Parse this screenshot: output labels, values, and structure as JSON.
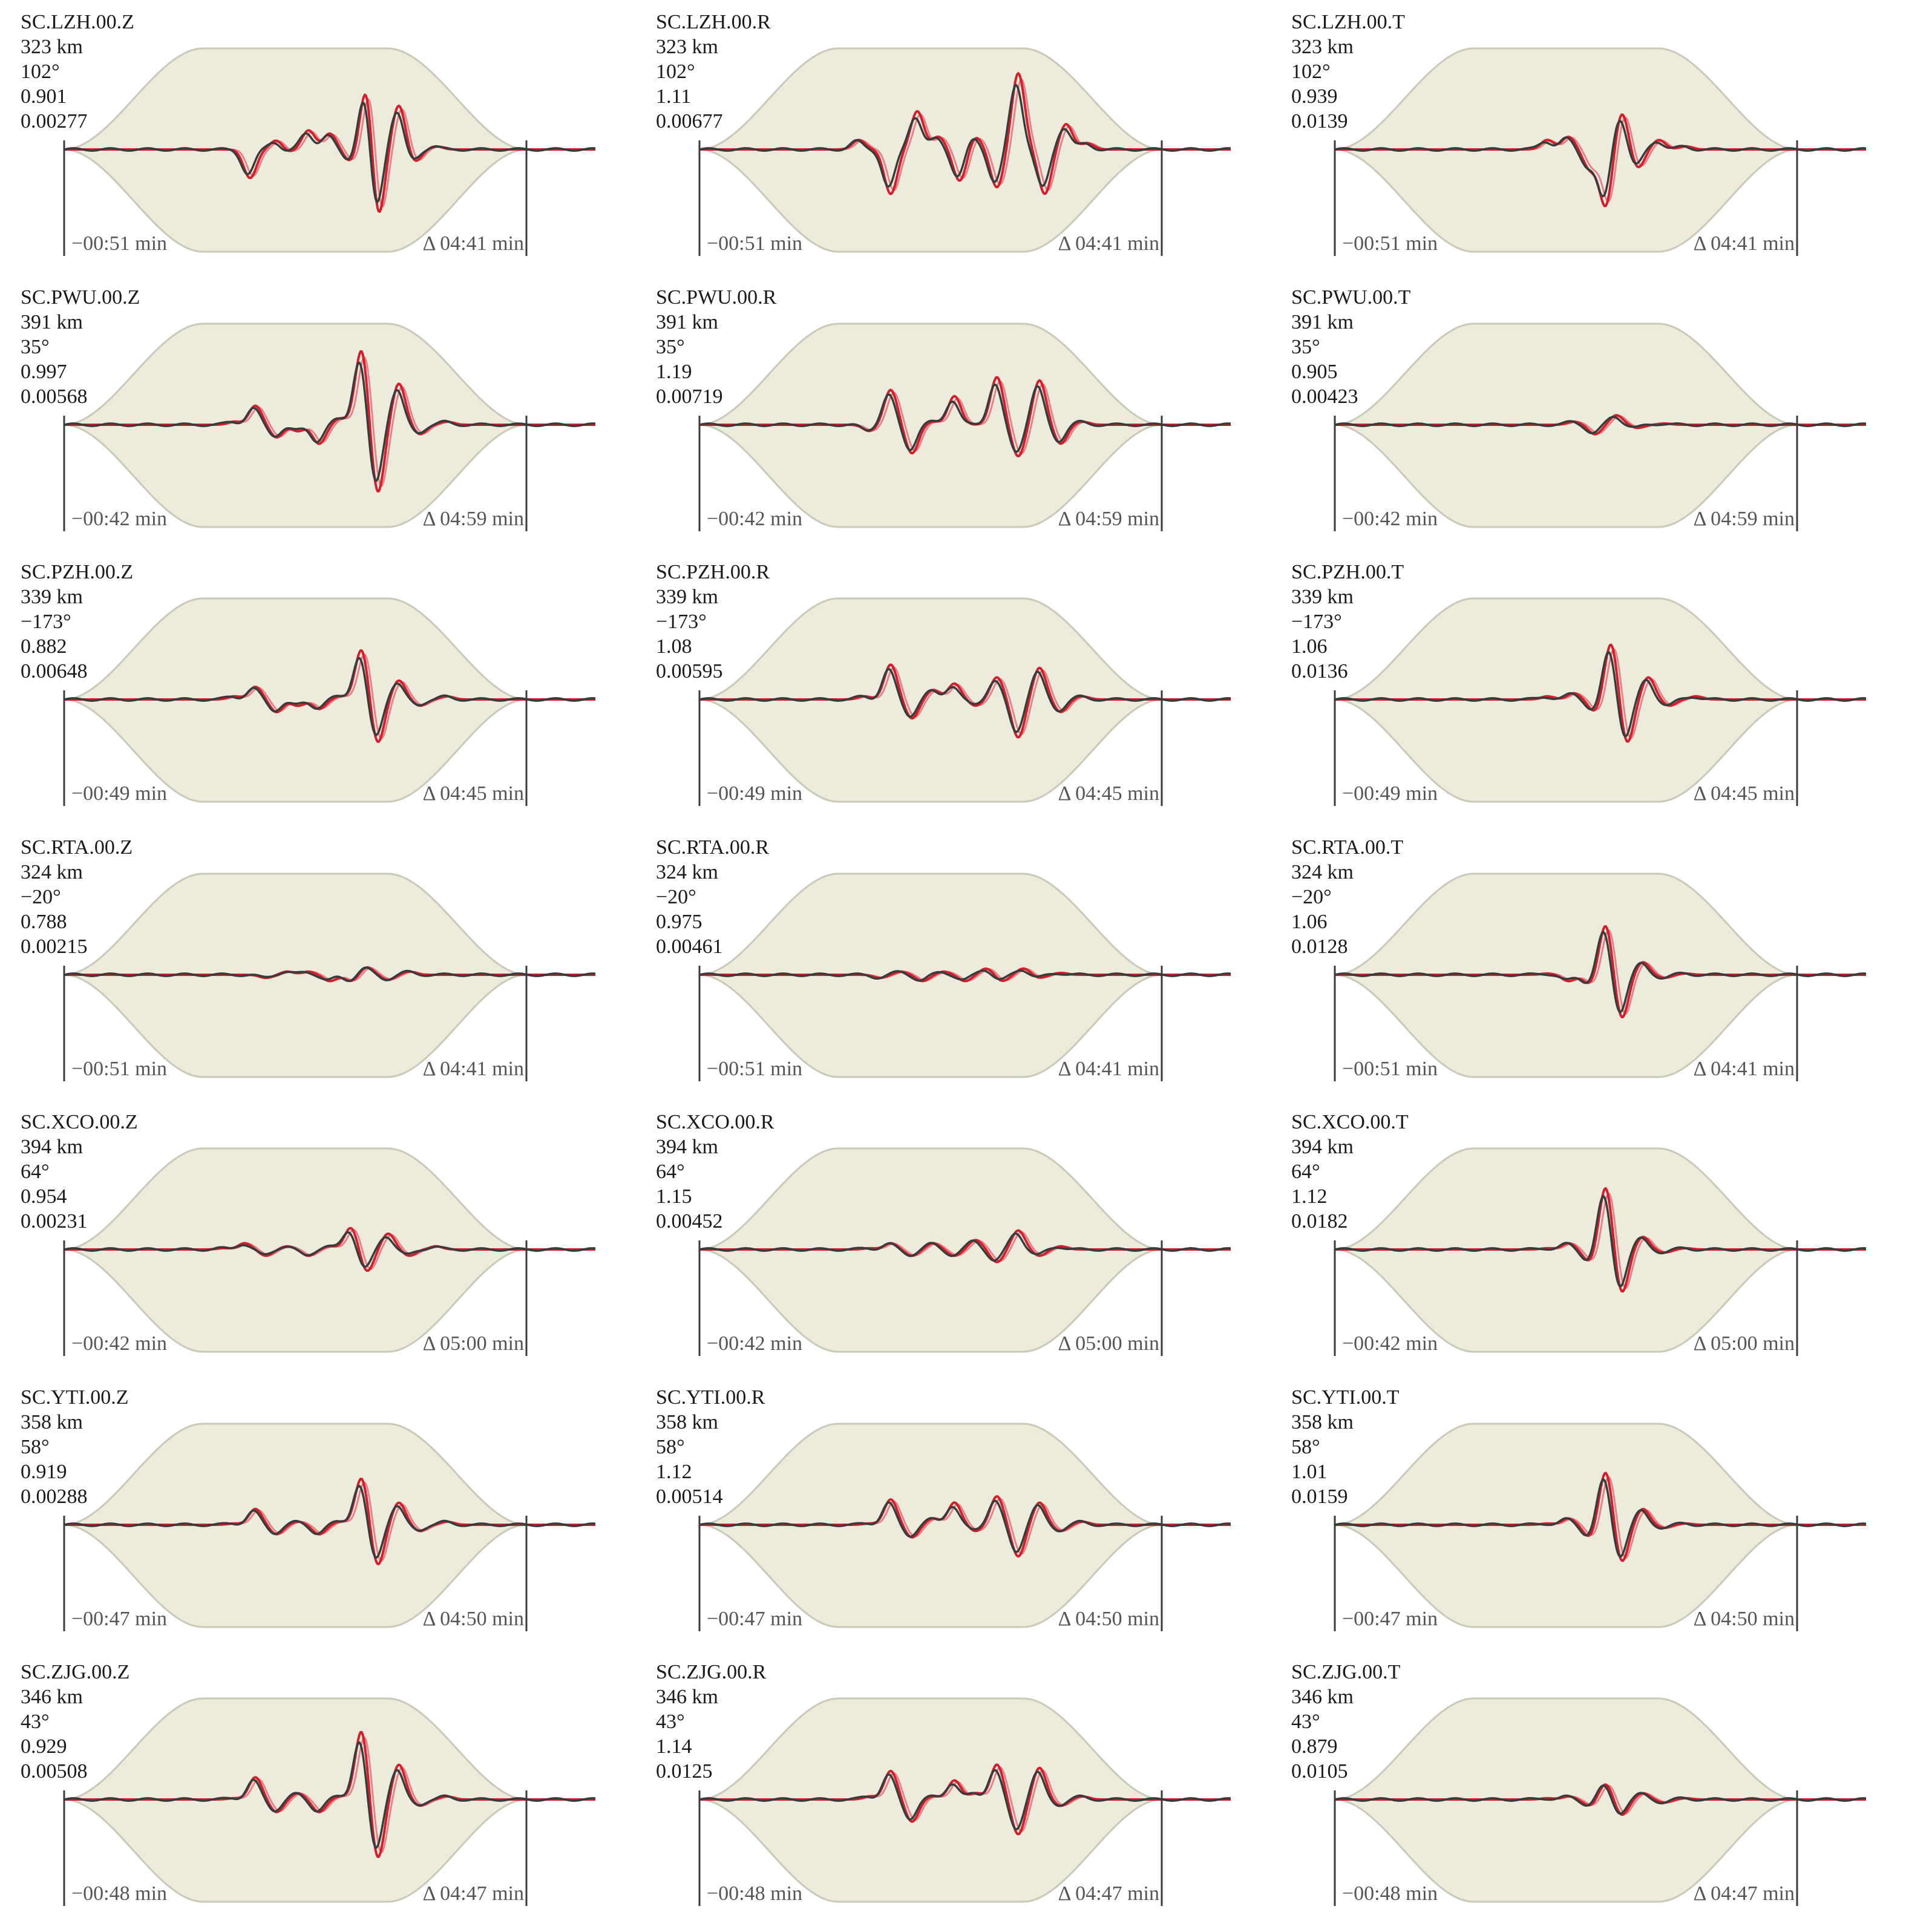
{
  "colors": {
    "envelope_fill": "#ecebdc",
    "envelope_edge": "#c9c9b7",
    "observed_trace": "#3a3a3a",
    "synthetic_trace": "#d0202e",
    "synthetic_trace_light": "#e4838b",
    "axis": "#3b3b3b",
    "tick_label": "#555555"
  },
  "chart_data": [
    {
      "type": "line",
      "station": "SC.LZH.00.Z",
      "distance": "323 km",
      "azimuth": "102°",
      "ratio": "0.901",
      "amplitude": "0.00277",
      "start_label": "−00:51 min",
      "duration_label": "Δ 04:41 min",
      "peaks": [
        [
          0.35,
          -0.45
        ],
        [
          0.4,
          0.15
        ],
        [
          0.42,
          -0.05
        ],
        [
          0.46,
          0.3
        ],
        [
          0.5,
          0.25
        ],
        [
          0.54,
          -0.2
        ],
        [
          0.57,
          1.1
        ],
        [
          0.59,
          -1.2
        ],
        [
          0.63,
          0.7
        ],
        [
          0.66,
          -0.2
        ],
        [
          0.7,
          0.05
        ]
      ]
    },
    {
      "type": "line",
      "station": "SC.LZH.00.R",
      "distance": "323 km",
      "azimuth": "102°",
      "ratio": "1.11",
      "amplitude": "0.00677",
      "start_label": "−00:51 min",
      "duration_label": "Δ 04:41 min",
      "peaks": [
        [
          0.3,
          0.15
        ],
        [
          0.36,
          -0.7
        ],
        [
          0.41,
          0.6
        ],
        [
          0.45,
          0.2
        ],
        [
          0.49,
          -0.5
        ],
        [
          0.52,
          0.2
        ],
        [
          0.56,
          -0.6
        ],
        [
          0.6,
          1.2
        ],
        [
          0.65,
          -0.7
        ],
        [
          0.69,
          0.4
        ],
        [
          0.73,
          0.1
        ]
      ]
    },
    {
      "type": "line",
      "station": "SC.LZH.00.T",
      "distance": "323 km",
      "azimuth": "102°",
      "ratio": "0.939",
      "amplitude": "0.0139",
      "start_label": "−00:51 min",
      "duration_label": "Δ 04:41 min",
      "peaks": [
        [
          0.4,
          0.15
        ],
        [
          0.44,
          0.2
        ],
        [
          0.48,
          -0.3
        ],
        [
          0.51,
          -0.9
        ],
        [
          0.54,
          0.6
        ],
        [
          0.57,
          -0.3
        ],
        [
          0.61,
          0.15
        ],
        [
          0.66,
          0.05
        ]
      ]
    },
    {
      "type": "line",
      "station": "SC.PWU.00.Z",
      "distance": "391 km",
      "azimuth": "35°",
      "ratio": "0.997",
      "amplitude": "0.00568",
      "start_label": "−00:42 min",
      "duration_label": "Δ 04:59 min",
      "peaks": [
        [
          0.32,
          0.05
        ],
        [
          0.36,
          0.3
        ],
        [
          0.4,
          -0.2
        ],
        [
          0.44,
          -0.1
        ],
        [
          0.48,
          -0.3
        ],
        [
          0.52,
          0.1
        ],
        [
          0.56,
          1.2
        ],
        [
          0.59,
          -1.1
        ],
        [
          0.63,
          0.65
        ],
        [
          0.67,
          -0.15
        ],
        [
          0.72,
          0.05
        ]
      ]
    },
    {
      "type": "line",
      "station": "SC.PWU.00.R",
      "distance": "391 km",
      "azimuth": "35°",
      "ratio": "1.19",
      "amplitude": "0.00719",
      "start_label": "−00:42 min",
      "duration_label": "Δ 04:59 min",
      "peaks": [
        [
          0.32,
          -0.1
        ],
        [
          0.36,
          0.55
        ],
        [
          0.4,
          -0.45
        ],
        [
          0.44,
          0.05
        ],
        [
          0.48,
          0.45
        ],
        [
          0.52,
          0.0
        ],
        [
          0.56,
          0.75
        ],
        [
          0.6,
          -0.5
        ],
        [
          0.64,
          0.7
        ],
        [
          0.68,
          -0.3
        ],
        [
          0.72,
          0.05
        ]
      ]
    },
    {
      "type": "line",
      "station": "SC.PWU.00.T",
      "distance": "391 km",
      "azimuth": "35°",
      "ratio": "0.905",
      "amplitude": "0.00423",
      "start_label": "−00:42 min",
      "duration_label": "Δ 04:59 min",
      "peaks": [
        [
          0.45,
          0.05
        ],
        [
          0.49,
          -0.15
        ],
        [
          0.53,
          0.15
        ],
        [
          0.57,
          -0.05
        ],
        [
          0.62,
          0.02
        ]
      ]
    },
    {
      "type": "line",
      "station": "SC.PZH.00.Z",
      "distance": "339 km",
      "azimuth": "−173°",
      "ratio": "0.882",
      "amplitude": "0.00648",
      "start_label": "−00:49 min",
      "duration_label": "Δ 04:45 min",
      "peaks": [
        [
          0.32,
          0.05
        ],
        [
          0.36,
          0.2
        ],
        [
          0.4,
          -0.2
        ],
        [
          0.44,
          -0.1
        ],
        [
          0.48,
          -0.15
        ],
        [
          0.52,
          0.05
        ],
        [
          0.56,
          0.8
        ],
        [
          0.59,
          -0.7
        ],
        [
          0.63,
          0.3
        ],
        [
          0.67,
          -0.1
        ],
        [
          0.72,
          0.05
        ]
      ]
    },
    {
      "type": "line",
      "station": "SC.PZH.00.R",
      "distance": "339 km",
      "azimuth": "−173°",
      "ratio": "1.08",
      "amplitude": "0.00595",
      "start_label": "−00:49 min",
      "duration_label": "Δ 04:45 min",
      "peaks": [
        [
          0.31,
          0.05
        ],
        [
          0.36,
          0.55
        ],
        [
          0.4,
          -0.3
        ],
        [
          0.44,
          0.15
        ],
        [
          0.48,
          0.25
        ],
        [
          0.52,
          -0.1
        ],
        [
          0.56,
          0.35
        ],
        [
          0.6,
          -0.6
        ],
        [
          0.64,
          0.5
        ],
        [
          0.68,
          -0.2
        ],
        [
          0.72,
          0.05
        ]
      ]
    },
    {
      "type": "line",
      "station": "SC.PZH.00.T",
      "distance": "339 km",
      "azimuth": "−173°",
      "ratio": "1.06",
      "amplitude": "0.0136",
      "start_label": "−00:49 min",
      "duration_label": "Δ 04:45 min",
      "peaks": [
        [
          0.4,
          0.05
        ],
        [
          0.45,
          0.1
        ],
        [
          0.49,
          -0.2
        ],
        [
          0.52,
          0.9
        ],
        [
          0.55,
          -0.7
        ],
        [
          0.59,
          0.35
        ],
        [
          0.63,
          -0.1
        ],
        [
          0.68,
          0.05
        ]
      ]
    },
    {
      "type": "line",
      "station": "SC.RTA.00.Z",
      "distance": "324 km",
      "azimuth": "−20°",
      "ratio": "0.788",
      "amplitude": "0.00215",
      "start_label": "−00:51 min",
      "duration_label": "Δ 04:41 min",
      "peaks": [
        [
          0.38,
          -0.05
        ],
        [
          0.42,
          0.05
        ],
        [
          0.46,
          0.05
        ],
        [
          0.5,
          -0.1
        ],
        [
          0.54,
          -0.1
        ],
        [
          0.57,
          0.12
        ],
        [
          0.61,
          -0.08
        ],
        [
          0.65,
          0.05
        ]
      ]
    },
    {
      "type": "line",
      "station": "SC.RTA.00.R",
      "distance": "324 km",
      "azimuth": "−20°",
      "ratio": "0.975",
      "amplitude": "0.00461",
      "start_label": "−00:51 min",
      "duration_label": "Δ 04:41 min",
      "peaks": [
        [
          0.34,
          -0.05
        ],
        [
          0.38,
          0.05
        ],
        [
          0.42,
          -0.1
        ],
        [
          0.46,
          0.05
        ],
        [
          0.5,
          -0.1
        ],
        [
          0.54,
          0.1
        ],
        [
          0.57,
          -0.1
        ],
        [
          0.61,
          0.1
        ],
        [
          0.64,
          -0.05
        ],
        [
          0.68,
          0.03
        ]
      ]
    },
    {
      "type": "line",
      "station": "SC.RTA.00.T",
      "distance": "324 km",
      "azimuth": "−20°",
      "ratio": "1.06",
      "amplitude": "0.0128",
      "start_label": "−00:51 min",
      "duration_label": "Δ 04:41 min",
      "peaks": [
        [
          0.4,
          0.02
        ],
        [
          0.44,
          -0.1
        ],
        [
          0.48,
          -0.15
        ],
        [
          0.51,
          0.8
        ],
        [
          0.54,
          -0.7
        ],
        [
          0.58,
          0.2
        ],
        [
          0.62,
          -0.05
        ],
        [
          0.66,
          0.02
        ]
      ]
    },
    {
      "type": "line",
      "station": "SC.XCO.00.Z",
      "distance": "394 km",
      "azimuth": "64°",
      "ratio": "0.954",
      "amplitude": "0.00231",
      "start_label": "−00:42 min",
      "duration_label": "Δ 05:00 min",
      "peaks": [
        [
          0.3,
          0.02
        ],
        [
          0.34,
          0.1
        ],
        [
          0.38,
          -0.1
        ],
        [
          0.42,
          0.05
        ],
        [
          0.46,
          -0.1
        ],
        [
          0.5,
          0.05
        ],
        [
          0.54,
          0.35
        ],
        [
          0.57,
          -0.35
        ],
        [
          0.61,
          0.25
        ],
        [
          0.65,
          -0.1
        ],
        [
          0.7,
          0.05
        ]
      ]
    },
    {
      "type": "line",
      "station": "SC.XCO.00.R",
      "distance": "394 km",
      "azimuth": "64°",
      "ratio": "1.15",
      "amplitude": "0.00452",
      "start_label": "−00:42 min",
      "duration_label": "Δ 05:00 min",
      "peaks": [
        [
          0.32,
          0.02
        ],
        [
          0.36,
          0.1
        ],
        [
          0.4,
          -0.1
        ],
        [
          0.44,
          0.1
        ],
        [
          0.48,
          -0.1
        ],
        [
          0.52,
          0.15
        ],
        [
          0.56,
          -0.2
        ],
        [
          0.6,
          0.3
        ],
        [
          0.64,
          -0.1
        ],
        [
          0.68,
          0.05
        ]
      ]
    },
    {
      "type": "line",
      "station": "SC.XCO.00.T",
      "distance": "394 km",
      "azimuth": "64°",
      "ratio": "1.12",
      "amplitude": "0.0182",
      "start_label": "−00:42 min",
      "duration_label": "Δ 05:00 min",
      "peaks": [
        [
          0.4,
          0.02
        ],
        [
          0.44,
          0.1
        ],
        [
          0.48,
          -0.2
        ],
        [
          0.51,
          1.0
        ],
        [
          0.54,
          -0.7
        ],
        [
          0.58,
          0.2
        ],
        [
          0.62,
          -0.05
        ],
        [
          0.66,
          0.02
        ]
      ]
    },
    {
      "type": "line",
      "station": "SC.YTI.00.Z",
      "distance": "358 km",
      "azimuth": "58°",
      "ratio": "0.919",
      "amplitude": "0.00288",
      "start_label": "−00:47 min",
      "duration_label": "Δ 04:50 min",
      "peaks": [
        [
          0.32,
          0.02
        ],
        [
          0.36,
          0.25
        ],
        [
          0.4,
          -0.15
        ],
        [
          0.44,
          0.05
        ],
        [
          0.48,
          -0.15
        ],
        [
          0.52,
          0.05
        ],
        [
          0.56,
          0.75
        ],
        [
          0.59,
          -0.65
        ],
        [
          0.63,
          0.35
        ],
        [
          0.67,
          -0.1
        ],
        [
          0.72,
          0.05
        ]
      ]
    },
    {
      "type": "line",
      "station": "SC.YTI.00.R",
      "distance": "358 km",
      "azimuth": "58°",
      "ratio": "1.12",
      "amplitude": "0.00514",
      "start_label": "−00:47 min",
      "duration_label": "Δ 04:50 min",
      "peaks": [
        [
          0.32,
          0.02
        ],
        [
          0.36,
          0.4
        ],
        [
          0.4,
          -0.2
        ],
        [
          0.44,
          0.1
        ],
        [
          0.48,
          0.35
        ],
        [
          0.52,
          -0.1
        ],
        [
          0.56,
          0.45
        ],
        [
          0.6,
          -0.5
        ],
        [
          0.64,
          0.35
        ],
        [
          0.68,
          -0.1
        ],
        [
          0.72,
          0.05
        ]
      ]
    },
    {
      "type": "line",
      "station": "SC.YTI.00.T",
      "distance": "358 km",
      "azimuth": "58°",
      "ratio": "1.01",
      "amplitude": "0.0159",
      "start_label": "−00:47 min",
      "duration_label": "Δ 04:50 min",
      "peaks": [
        [
          0.4,
          0.02
        ],
        [
          0.44,
          0.1
        ],
        [
          0.48,
          -0.2
        ],
        [
          0.51,
          0.85
        ],
        [
          0.54,
          -0.6
        ],
        [
          0.58,
          0.25
        ],
        [
          0.62,
          -0.05
        ],
        [
          0.66,
          0.02
        ]
      ]
    },
    {
      "type": "line",
      "station": "SC.ZJG.00.Z",
      "distance": "346 km",
      "azimuth": "43°",
      "ratio": "0.929",
      "amplitude": "0.00508",
      "start_label": "−00:48 min",
      "duration_label": "Δ 04:47 min",
      "peaks": [
        [
          0.32,
          0.02
        ],
        [
          0.36,
          0.35
        ],
        [
          0.4,
          -0.2
        ],
        [
          0.44,
          0.1
        ],
        [
          0.48,
          -0.2
        ],
        [
          0.52,
          0.05
        ],
        [
          0.56,
          1.1
        ],
        [
          0.59,
          -0.95
        ],
        [
          0.63,
          0.55
        ],
        [
          0.67,
          -0.1
        ],
        [
          0.72,
          0.05
        ]
      ]
    },
    {
      "type": "line",
      "station": "SC.ZJG.00.R",
      "distance": "346 km",
      "azimuth": "43°",
      "ratio": "1.14",
      "amplitude": "0.0125",
      "start_label": "−00:48 min",
      "duration_label": "Δ 04:47 min",
      "peaks": [
        [
          0.32,
          0.05
        ],
        [
          0.36,
          0.45
        ],
        [
          0.4,
          -0.35
        ],
        [
          0.44,
          0.05
        ],
        [
          0.48,
          0.3
        ],
        [
          0.52,
          0.1
        ],
        [
          0.56,
          0.55
        ],
        [
          0.6,
          -0.55
        ],
        [
          0.64,
          0.5
        ],
        [
          0.68,
          -0.1
        ],
        [
          0.72,
          0.05
        ]
      ]
    },
    {
      "type": "line",
      "station": "SC.ZJG.00.T",
      "distance": "346 km",
      "azimuth": "43°",
      "ratio": "0.879",
      "amplitude": "0.0105",
      "start_label": "−00:48 min",
      "duration_label": "Δ 04:47 min",
      "peaks": [
        [
          0.4,
          0.02
        ],
        [
          0.44,
          0.05
        ],
        [
          0.48,
          -0.1
        ],
        [
          0.51,
          0.25
        ],
        [
          0.54,
          -0.25
        ],
        [
          0.58,
          0.1
        ],
        [
          0.62,
          -0.05
        ],
        [
          0.66,
          0.02
        ]
      ]
    }
  ]
}
